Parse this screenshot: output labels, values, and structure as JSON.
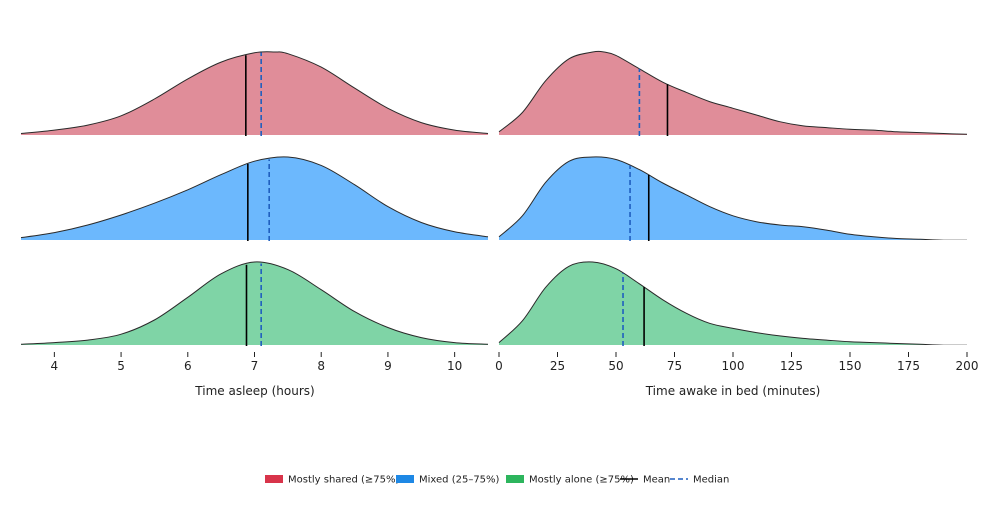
{
  "chart_data": [
    {
      "type": "area",
      "subtype": "ridgeline-density",
      "xlabel": "Time asleep (hours)",
      "xlim": [
        3.5,
        10.5
      ],
      "xticks": [
        "4",
        "5",
        "6",
        "7",
        "8",
        "9",
        "10"
      ],
      "ylabel": "",
      "title": "",
      "grid": false,
      "series": [
        {
          "name": "Mostly shared (≥75%)",
          "color": "#e08d99",
          "mean": 6.87,
          "median": 7.1,
          "x": [
            3.5,
            4.0,
            4.5,
            5.0,
            5.5,
            6.0,
            6.5,
            7.0,
            7.3,
            7.5,
            8.0,
            8.5,
            9.0,
            9.5,
            10.0,
            10.5
          ],
          "y": [
            0.03,
            0.07,
            0.13,
            0.24,
            0.44,
            0.68,
            0.88,
            0.99,
            1.0,
            0.98,
            0.82,
            0.57,
            0.33,
            0.16,
            0.07,
            0.03
          ]
        },
        {
          "name": "Mixed (25–75%)",
          "color": "#6cb8fd",
          "mean": 6.9,
          "median": 7.22,
          "x": [
            3.5,
            4.0,
            4.5,
            5.0,
            5.5,
            6.0,
            6.5,
            7.0,
            7.5,
            8.0,
            8.5,
            9.0,
            9.5,
            10.0,
            10.5
          ],
          "y": [
            0.04,
            0.1,
            0.19,
            0.31,
            0.45,
            0.61,
            0.79,
            0.95,
            1.0,
            0.9,
            0.67,
            0.41,
            0.22,
            0.11,
            0.05
          ]
        },
        {
          "name": "Mostly alone (≥75%)",
          "color": "#7fd4a6",
          "mean": 6.88,
          "median": 7.1,
          "x": [
            3.5,
            4.0,
            4.5,
            5.0,
            5.5,
            6.0,
            6.5,
            7.0,
            7.5,
            8.0,
            8.5,
            9.0,
            9.5,
            10.0,
            10.5
          ],
          "y": [
            0.02,
            0.04,
            0.07,
            0.14,
            0.31,
            0.58,
            0.86,
            1.0,
            0.91,
            0.67,
            0.41,
            0.22,
            0.1,
            0.04,
            0.02
          ]
        }
      ],
      "reference_lines": [
        {
          "name": "Mean",
          "style": "solid",
          "color": "#000000"
        },
        {
          "name": "Median",
          "style": "dashed",
          "color": "#1f5fbf"
        }
      ]
    },
    {
      "type": "area",
      "subtype": "ridgeline-density",
      "xlabel": "Time awake in bed (minutes)",
      "xlim": [
        0,
        200
      ],
      "xticks": [
        "0",
        "25",
        "50",
        "75",
        "100",
        "125",
        "150",
        "175",
        "200"
      ],
      "ylabel": "",
      "title": "",
      "grid": false,
      "series": [
        {
          "name": "Mostly shared (≥75%)",
          "color": "#e08d99",
          "mean": 72,
          "median": 60,
          "x": [
            0,
            10,
            20,
            30,
            40,
            45,
            50,
            60,
            70,
            80,
            90,
            100,
            110,
            120,
            130,
            140,
            150,
            160,
            170,
            180,
            190,
            200
          ],
          "y": [
            0.05,
            0.28,
            0.66,
            0.92,
            1.0,
            1.0,
            0.96,
            0.8,
            0.64,
            0.52,
            0.41,
            0.33,
            0.25,
            0.17,
            0.12,
            0.1,
            0.08,
            0.07,
            0.05,
            0.04,
            0.03,
            0.02
          ]
        },
        {
          "name": "Mixed (25–75%)",
          "color": "#6cb8fd",
          "mean": 64,
          "median": 56,
          "x": [
            0,
            10,
            20,
            30,
            40,
            50,
            60,
            70,
            80,
            90,
            100,
            110,
            120,
            130,
            140,
            150,
            160,
            170,
            180,
            190,
            200
          ],
          "y": [
            0.05,
            0.3,
            0.7,
            0.95,
            1.0,
            0.97,
            0.85,
            0.69,
            0.55,
            0.41,
            0.3,
            0.23,
            0.19,
            0.17,
            0.13,
            0.08,
            0.05,
            0.03,
            0.02,
            0.01,
            0.01
          ]
        },
        {
          "name": "Mostly alone (≥75%)",
          "color": "#7fd4a6",
          "mean": 62,
          "median": 53,
          "x": [
            0,
            10,
            20,
            30,
            40,
            50,
            60,
            70,
            80,
            90,
            100,
            110,
            120,
            130,
            140,
            150,
            160,
            170,
            180,
            190,
            200
          ],
          "y": [
            0.04,
            0.3,
            0.7,
            0.95,
            1.0,
            0.92,
            0.74,
            0.55,
            0.39,
            0.27,
            0.21,
            0.16,
            0.12,
            0.09,
            0.07,
            0.05,
            0.04,
            0.03,
            0.02,
            0.01,
            0.01
          ]
        }
      ]
    }
  ],
  "legend": {
    "placement": "bottom-center",
    "items": [
      {
        "label": "Mostly shared (≥75%)",
        "kind": "patch",
        "color": "#d8344a"
      },
      {
        "label": "Mixed (25–75%)",
        "kind": "patch",
        "color": "#1e88e5"
      },
      {
        "label": "Mostly alone (≥75%)",
        "kind": "patch",
        "color": "#2db55d"
      },
      {
        "label": "Mean",
        "kind": "line",
        "color": "#000000"
      },
      {
        "label": "Median",
        "kind": "dashed",
        "color": "#1f5fbf"
      }
    ]
  }
}
